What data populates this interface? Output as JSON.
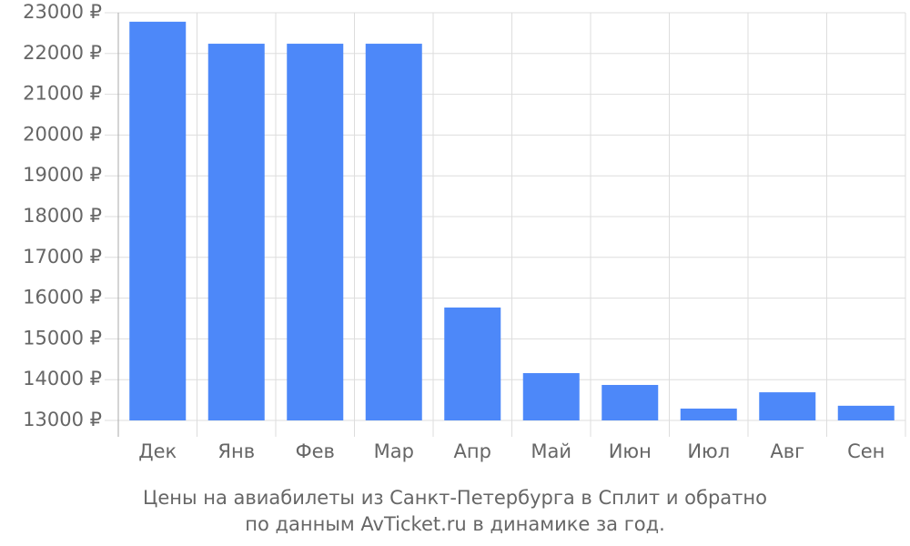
{
  "chart_data": {
    "type": "bar",
    "categories": [
      "Дек",
      "Янв",
      "Фев",
      "Мар",
      "Апр",
      "Май",
      "Июн",
      "Июл",
      "Авг",
      "Сен"
    ],
    "values": [
      22780,
      22240,
      22240,
      22240,
      15770,
      14160,
      13870,
      13290,
      13690,
      13360
    ],
    "color": "#4d88f9",
    "ylim": [
      13000,
      23000
    ],
    "yticks": [
      {
        "value": 13000,
        "label": "13000 ₽"
      },
      {
        "value": 14000,
        "label": "14000 ₽"
      },
      {
        "value": 15000,
        "label": "15000 ₽"
      },
      {
        "value": 16000,
        "label": "16000 ₽"
      },
      {
        "value": 17000,
        "label": "17000 ₽"
      },
      {
        "value": 18000,
        "label": "18000 ₽"
      },
      {
        "value": 19000,
        "label": "19000 ₽"
      },
      {
        "value": 20000,
        "label": "20000 ₽"
      },
      {
        "value": 21000,
        "label": "21000 ₽"
      },
      {
        "value": 22000,
        "label": "22000 ₽"
      },
      {
        "value": 23000,
        "label": "23000 ₽"
      }
    ],
    "grid": true,
    "caption": [
      "Цены на авиабилеты из Санкт-Петербурга в Сплит и обратно",
      "по данным AvTicket.ru в динамике за год."
    ]
  }
}
